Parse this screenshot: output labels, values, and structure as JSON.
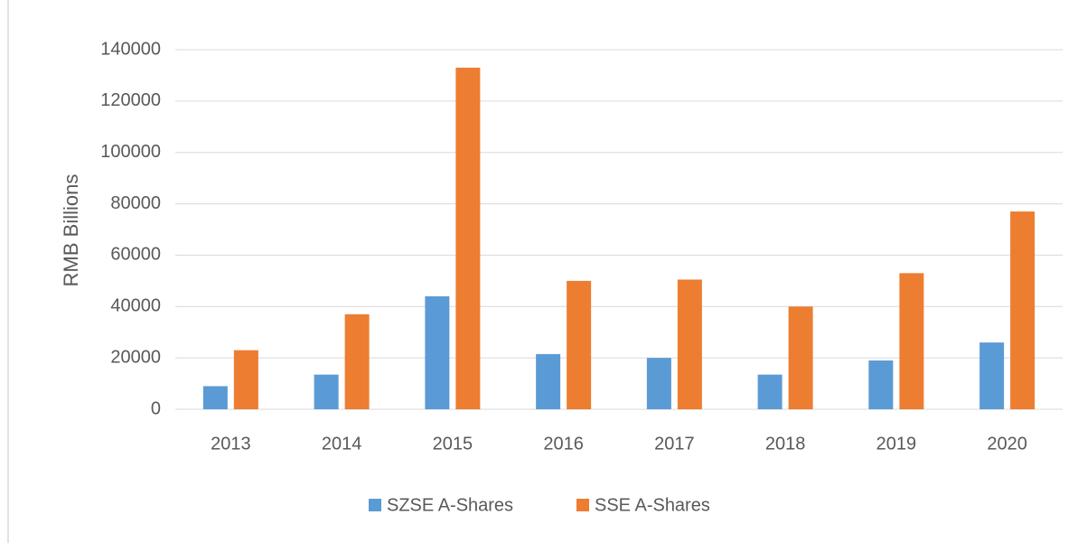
{
  "chart_data": {
    "type": "bar",
    "y_label": "RMB Billions",
    "categories": [
      "2013",
      "2014",
      "2015",
      "2016",
      "2017",
      "2018",
      "2019",
      "2020"
    ],
    "series": [
      {
        "name": "SZSE A-Shares",
        "color": "#5b9bd5",
        "values": [
          9000,
          13500,
          44000,
          21500,
          20000,
          13500,
          19000,
          26000
        ]
      },
      {
        "name": "SSE A-Shares",
        "color": "#ed7d31",
        "values": [
          23000,
          37000,
          133000,
          50000,
          50500,
          40000,
          53000,
          77000
        ]
      }
    ],
    "ylim": [
      0,
      140000
    ],
    "yticks": [
      0,
      20000,
      40000,
      60000,
      80000,
      100000,
      120000,
      140000
    ],
    "grid": true,
    "legend": "bottom"
  }
}
